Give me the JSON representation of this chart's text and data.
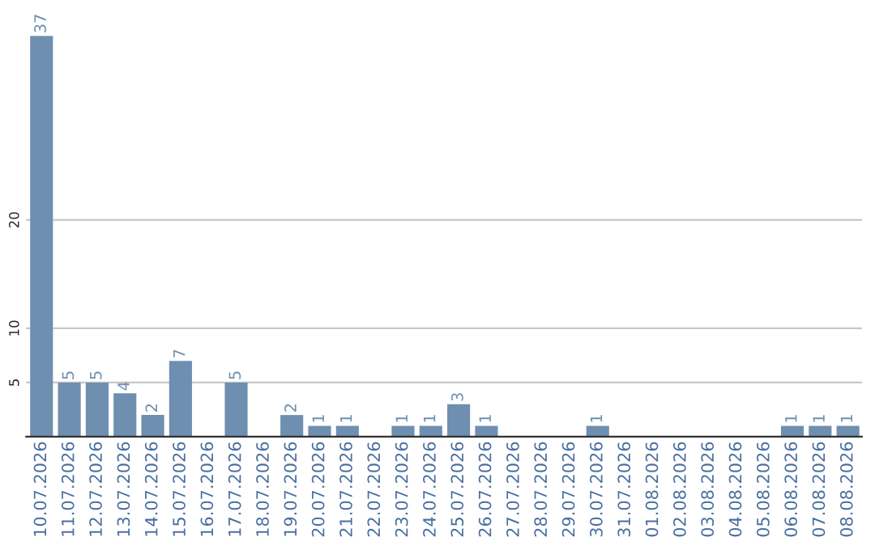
{
  "chart_data": {
    "type": "bar",
    "categories": [
      "10.07.2026",
      "11.07.2026",
      "12.07.2026",
      "13.07.2026",
      "14.07.2026",
      "15.07.2026",
      "16.07.2026",
      "17.07.2026",
      "18.07.2026",
      "19.07.2026",
      "20.07.2026",
      "21.07.2026",
      "22.07.2026",
      "23.07.2026",
      "24.07.2026",
      "25.07.2026",
      "26.07.2026",
      "27.07.2026",
      "28.07.2026",
      "29.07.2026",
      "30.07.2026",
      "31.07.2026",
      "01.08.2026",
      "02.08.2026",
      "03.08.2026",
      "04.08.2026",
      "05.08.2026",
      "06.08.2026",
      "07.08.2026",
      "08.08.2026"
    ],
    "values": [
      37,
      5,
      5,
      4,
      2,
      7,
      0,
      5,
      0,
      2,
      1,
      1,
      0,
      1,
      1,
      3,
      1,
      0,
      0,
      0,
      1,
      0,
      0,
      0,
      0,
      0,
      0,
      1,
      1,
      1
    ],
    "value_labels": [
      "37",
      "5",
      "5",
      "4",
      "2",
      "7",
      null,
      "5",
      null,
      "2",
      "1",
      "1",
      null,
      "1",
      "1",
      "3",
      "1",
      null,
      null,
      null,
      "1",
      null,
      null,
      null,
      null,
      null,
      null,
      "1",
      "1",
      "1"
    ],
    "color": "#6e8fb0",
    "ylim": [
      0,
      37
    ],
    "yticks": [
      5,
      10,
      20
    ],
    "grid": "y",
    "legend": false
  }
}
